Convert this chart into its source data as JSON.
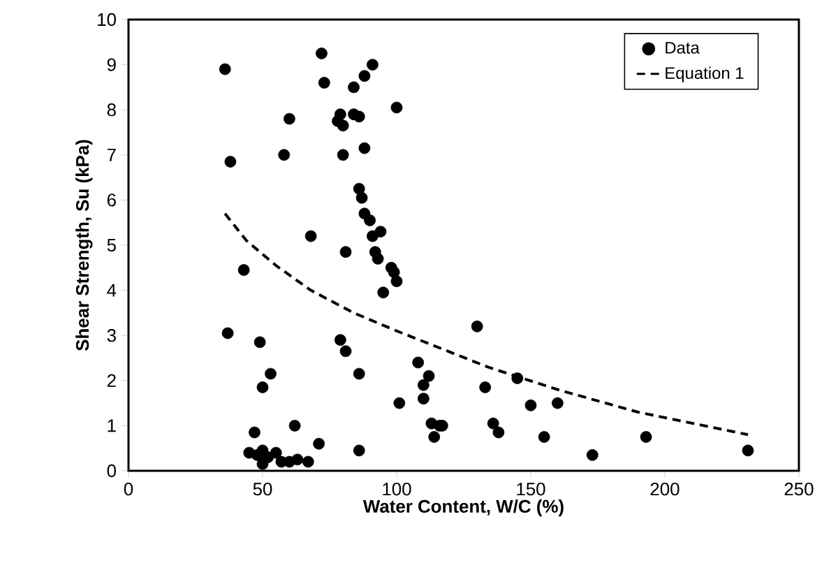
{
  "chart_data": {
    "type": "scatter",
    "xlabel": "Water Content, W/C (%)",
    "ylabel": "Shear Strength, Su (kPa)",
    "xlim": [
      0,
      250
    ],
    "ylim": [
      0,
      10
    ],
    "xticks": [
      0,
      50,
      100,
      150,
      200,
      250
    ],
    "yticks": [
      0,
      1,
      2,
      3,
      4,
      5,
      6,
      7,
      8,
      9,
      10
    ],
    "grid": false,
    "legend": "top right",
    "series": [
      {
        "name": "Data",
        "marker": "circle",
        "color": "#000000",
        "x": [
          36,
          38,
          37,
          43,
          47,
          49,
          50,
          53,
          45,
          48,
          50,
          52,
          55,
          57,
          50,
          60,
          63,
          67,
          62,
          71,
          58,
          60,
          68,
          72,
          73,
          78,
          79,
          80,
          80,
          81,
          79,
          81,
          84,
          84,
          86,
          86,
          86,
          86,
          87,
          88,
          88,
          88,
          91,
          90,
          91,
          92,
          93,
          94,
          95,
          98,
          99,
          100,
          100,
          101,
          108,
          110,
          110,
          112,
          113,
          114,
          116,
          117,
          130,
          133,
          136,
          138,
          145,
          150,
          155,
          160,
          173,
          193,
          231
        ],
        "values": [
          8.9,
          6.85,
          3.05,
          4.45,
          0.85,
          2.85,
          1.85,
          2.15,
          0.4,
          0.35,
          0.45,
          0.3,
          0.4,
          0.2,
          0.15,
          0.2,
          0.25,
          0.2,
          1.0,
          0.6,
          7.0,
          7.8,
          5.2,
          9.25,
          8.6,
          7.75,
          7.9,
          7.65,
          7.0,
          4.85,
          2.9,
          2.65,
          8.5,
          7.9,
          7.85,
          2.15,
          0.45,
          6.25,
          6.05,
          8.75,
          7.15,
          5.7,
          9.0,
          5.55,
          5.2,
          4.85,
          4.7,
          5.3,
          3.95,
          4.5,
          4.4,
          4.2,
          8.05,
          1.5,
          2.4,
          1.9,
          1.6,
          2.1,
          1.05,
          0.75,
          1.0,
          1.0,
          3.2,
          1.85,
          1.05,
          0.85,
          2.05,
          1.45,
          0.75,
          1.5,
          0.35,
          0.75,
          0.45
        ]
      },
      {
        "name": "Equation 1",
        "type": "line",
        "line_style": "dashed",
        "marker": "none",
        "color": "#000000",
        "x": [
          36,
          44,
          55,
          68,
          84,
          100,
          117,
          134,
          160,
          190,
          231
        ],
        "values": [
          5.7,
          5.1,
          4.55,
          4.0,
          3.5,
          3.1,
          2.7,
          2.3,
          1.8,
          1.3,
          0.8
        ]
      }
    ]
  }
}
